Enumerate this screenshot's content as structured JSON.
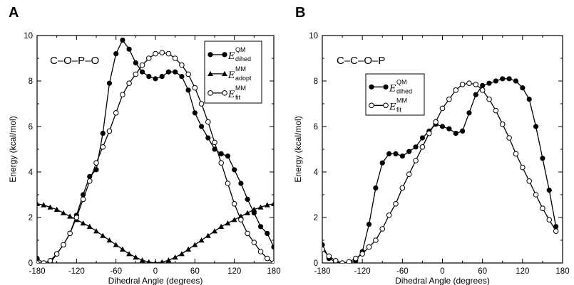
{
  "chart_data": [
    {
      "panel": "A",
      "type": "line",
      "annotation": "C–O–P–O",
      "xlabel": "Dihedral Angle (degrees)",
      "ylabel": "Energy (kcal/mol)",
      "xlim": [
        -180,
        180
      ],
      "ylim": [
        0,
        10
      ],
      "xticks": [
        -180,
        -120,
        -60,
        0,
        60,
        120,
        180
      ],
      "yticks": [
        0,
        2,
        4,
        6,
        8,
        10
      ],
      "legend_position": "top-right",
      "series": [
        {
          "name": "E_dihed^QM",
          "sym": "E",
          "sup": "QM",
          "sub": "dihed",
          "marker": "filled-circle",
          "color": "#000000",
          "x": [
            -180,
            -170,
            -160,
            -150,
            -140,
            -130,
            -120,
            -110,
            -100,
            -90,
            -80,
            -70,
            -60,
            -50,
            -40,
            -30,
            -20,
            -10,
            0,
            10,
            20,
            30,
            40,
            50,
            60,
            70,
            80,
            90,
            100,
            110,
            120,
            130,
            140,
            150,
            160,
            170,
            180
          ],
          "y": [
            0.2,
            0.0,
            0.0,
            0.4,
            0.8,
            1.3,
            2.1,
            3.0,
            3.8,
            4.1,
            5.7,
            7.9,
            9.2,
            9.8,
            9.4,
            8.8,
            8.4,
            8.2,
            8.1,
            8.2,
            8.4,
            8.4,
            8.2,
            7.6,
            6.6,
            6.0,
            5.5,
            5.0,
            4.8,
            4.7,
            4.1,
            3.5,
            2.8,
            2.2,
            1.6,
            1.3,
            0.7
          ]
        },
        {
          "name": "E_adopt^MM",
          "sym": "E",
          "sup": "MM",
          "sub": "adopt",
          "marker": "filled-triangle",
          "color": "#000000",
          "x": [
            -180,
            -170,
            -160,
            -150,
            -140,
            -130,
            -120,
            -110,
            -100,
            -90,
            -80,
            -70,
            -60,
            -50,
            -40,
            -30,
            -20,
            -10,
            0,
            10,
            20,
            30,
            40,
            50,
            60,
            70,
            80,
            90,
            100,
            110,
            120,
            130,
            140,
            150,
            160,
            170,
            180
          ],
          "y": [
            2.6,
            2.55,
            2.45,
            2.35,
            2.2,
            2.05,
            1.9,
            1.75,
            1.6,
            1.4,
            1.2,
            1.0,
            0.8,
            0.6,
            0.4,
            0.25,
            0.12,
            0.04,
            0.0,
            0.04,
            0.12,
            0.25,
            0.4,
            0.6,
            0.8,
            1.0,
            1.2,
            1.4,
            1.6,
            1.75,
            1.9,
            2.05,
            2.2,
            2.35,
            2.45,
            2.55,
            2.6
          ]
        },
        {
          "name": "E_fit^MM",
          "sym": "E",
          "sup": "MM",
          "sub": "fit",
          "marker": "open-circle",
          "color": "#000000",
          "x": [
            -180,
            -170,
            -160,
            -150,
            -140,
            -130,
            -120,
            -110,
            -100,
            -90,
            -80,
            -70,
            -60,
            -50,
            -40,
            -30,
            -20,
            -10,
            0,
            10,
            20,
            30,
            40,
            50,
            60,
            70,
            80,
            90,
            100,
            110,
            120,
            130,
            140,
            150,
            160,
            170,
            180
          ],
          "y": [
            0.0,
            0.0,
            0.1,
            0.4,
            0.8,
            1.3,
            2.0,
            2.8,
            3.6,
            4.4,
            5.1,
            5.8,
            6.6,
            7.4,
            7.9,
            8.3,
            8.7,
            9.0,
            9.2,
            9.25,
            9.2,
            9.0,
            8.7,
            8.3,
            7.7,
            7.0,
            6.2,
            5.3,
            4.4,
            3.5,
            2.6,
            1.9,
            1.3,
            0.9,
            0.5,
            0.2,
            0.0
          ]
        }
      ]
    },
    {
      "panel": "B",
      "type": "line",
      "annotation": "C–C–O–P",
      "xlabel": "Dihedral Angle (degrees)",
      "ylabel": "Energy (kcal/mol)",
      "xlim": [
        -180,
        180
      ],
      "ylim": [
        0,
        10
      ],
      "xticks": [
        -180,
        -120,
        -60,
        0,
        60,
        120,
        180
      ],
      "yticks": [
        0,
        2,
        4,
        6,
        8,
        10
      ],
      "legend_position": "top-left",
      "series": [
        {
          "name": "E_dihed^QM",
          "sym": "E",
          "sup": "QM",
          "sub": "dihed",
          "marker": "filled-circle",
          "color": "#000000",
          "x": [
            -180,
            -170,
            -160,
            -150,
            -140,
            -130,
            -120,
            -110,
            -100,
            -90,
            -80,
            -70,
            -60,
            -50,
            -40,
            -30,
            -20,
            -10,
            0,
            10,
            20,
            30,
            40,
            50,
            60,
            70,
            80,
            90,
            100,
            110,
            120,
            130,
            140,
            150,
            160,
            170
          ],
          "y": [
            0.8,
            0.2,
            0.05,
            0.0,
            0.0,
            0.1,
            0.5,
            1.7,
            3.3,
            4.4,
            4.8,
            4.8,
            4.7,
            4.9,
            5.1,
            5.5,
            5.8,
            6.1,
            6.0,
            5.9,
            5.7,
            5.8,
            6.6,
            7.4,
            7.8,
            7.9,
            8.0,
            8.1,
            8.1,
            8.0,
            7.7,
            7.2,
            6.0,
            4.6,
            3.2,
            1.6
          ]
        },
        {
          "name": "E_fit^MM",
          "sym": "E",
          "sup": "MM",
          "sub": "fit",
          "marker": "open-circle",
          "color": "#000000",
          "x": [
            -180,
            -170,
            -160,
            -150,
            -140,
            -130,
            -120,
            -110,
            -100,
            -90,
            -80,
            -70,
            -60,
            -50,
            -40,
            -30,
            -20,
            -10,
            0,
            10,
            20,
            30,
            40,
            50,
            60,
            70,
            80,
            90,
            100,
            110,
            120,
            130,
            140,
            150,
            160,
            170
          ],
          "y": [
            0.6,
            0.3,
            0.1,
            0.0,
            0.05,
            0.2,
            0.4,
            0.7,
            1.0,
            1.5,
            2.1,
            2.6,
            3.3,
            3.9,
            4.5,
            5.1,
            5.7,
            6.2,
            6.8,
            7.2,
            7.6,
            7.85,
            7.9,
            7.85,
            7.6,
            7.2,
            6.7,
            6.1,
            5.5,
            4.8,
            4.2,
            3.6,
            3.0,
            2.4,
            1.9,
            1.4
          ]
        }
      ]
    }
  ]
}
